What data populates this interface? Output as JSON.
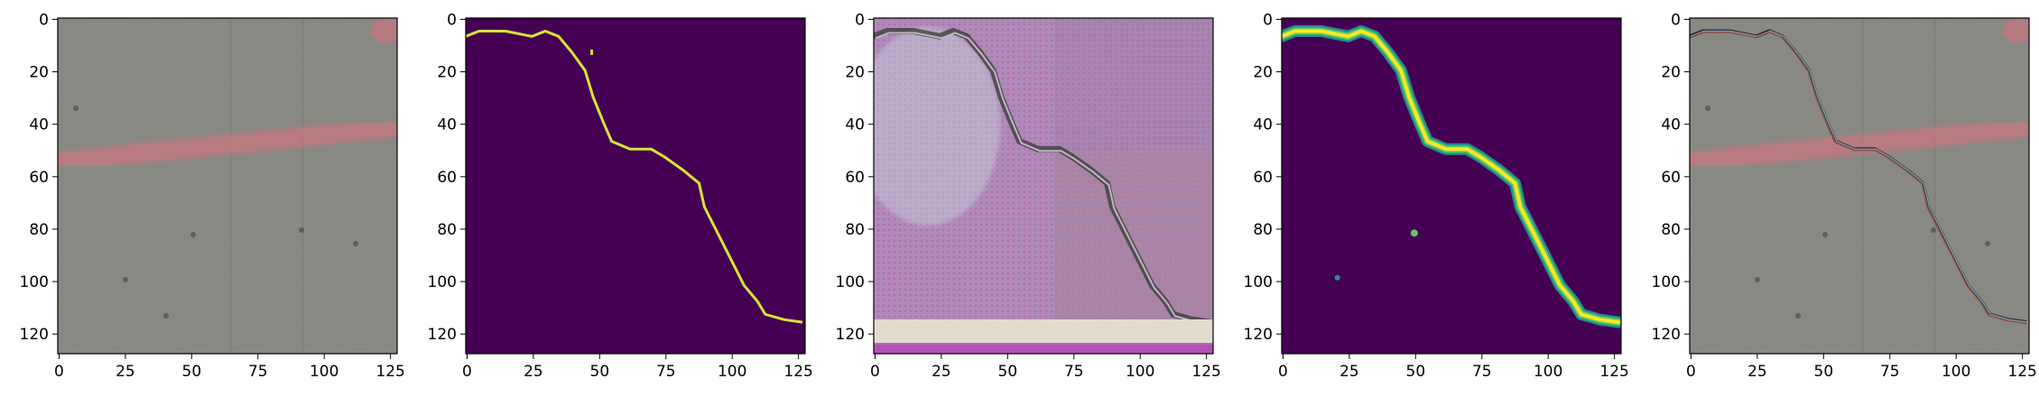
{
  "panels": [
    {
      "id": "p1",
      "kind": "input-photo",
      "xticks": [
        "0",
        "25",
        "50",
        "75",
        "100",
        "125"
      ],
      "yticks": [
        "0",
        "20",
        "40",
        "60",
        "80",
        "100",
        "120"
      ]
    },
    {
      "id": "p2",
      "kind": "ground-truth-mask",
      "xticks": [
        "0",
        "25",
        "50",
        "75",
        "100",
        "125"
      ],
      "yticks": [
        "0",
        "20",
        "40",
        "60",
        "80",
        "100",
        "120"
      ]
    },
    {
      "id": "p3",
      "kind": "generated-image",
      "xticks": [
        "0",
        "25",
        "50",
        "75",
        "100",
        "125"
      ],
      "yticks": [
        "0",
        "20",
        "40",
        "60",
        "80",
        "100",
        "120"
      ]
    },
    {
      "id": "p4",
      "kind": "predicted-mask",
      "xticks": [
        "0",
        "25",
        "50",
        "75",
        "100",
        "125"
      ],
      "yticks": [
        "0",
        "20",
        "40",
        "60",
        "80",
        "100",
        "120"
      ]
    },
    {
      "id": "p5",
      "kind": "overlay",
      "xticks": [
        "0",
        "25",
        "50",
        "75",
        "100",
        "125"
      ],
      "yticks": [
        "0",
        "20",
        "40",
        "60",
        "80",
        "100",
        "120"
      ]
    }
  ],
  "colors": {
    "mask_background": "#440154",
    "mask_line": "#d8e337",
    "concrete": "#8a8a84",
    "paint_stripe": "#e0727f",
    "pred_edge": "#21918c",
    "pred_core": "#fde725"
  },
  "crack_path": [
    [
      0,
      7
    ],
    [
      5,
      5
    ],
    [
      15,
      5
    ],
    [
      25,
      7
    ],
    [
      30,
      5
    ],
    [
      35,
      7
    ],
    [
      40,
      13
    ],
    [
      45,
      20
    ],
    [
      48,
      30
    ],
    [
      52,
      40
    ],
    [
      55,
      47
    ],
    [
      62,
      50
    ],
    [
      70,
      50
    ],
    [
      75,
      53
    ],
    [
      82,
      58
    ],
    [
      88,
      63
    ],
    [
      90,
      72
    ],
    [
      95,
      82
    ],
    [
      100,
      92
    ],
    [
      105,
      102
    ],
    [
      110,
      108
    ],
    [
      113,
      113
    ],
    [
      120,
      115
    ],
    [
      127,
      116
    ]
  ]
}
